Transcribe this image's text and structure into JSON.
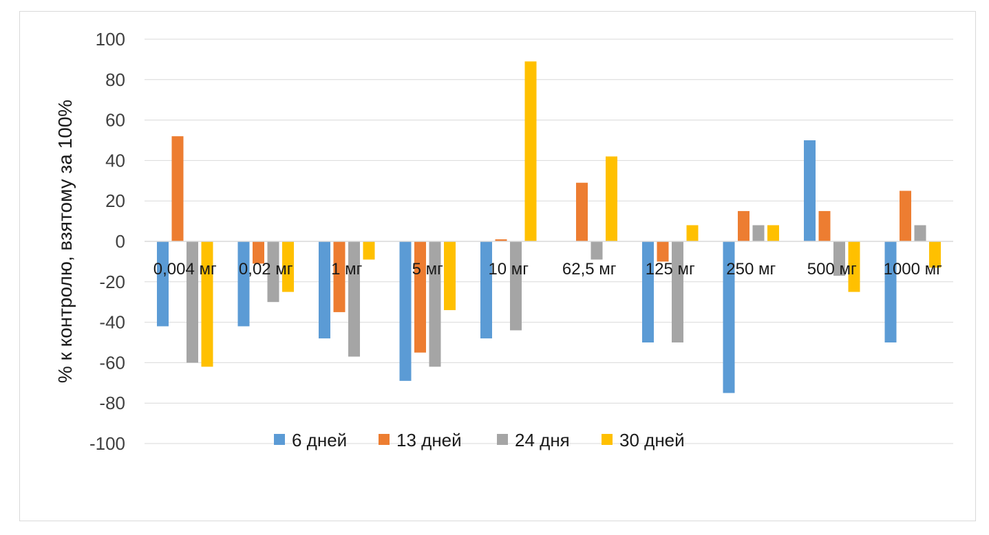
{
  "chart_data": {
    "type": "bar",
    "title": "",
    "xlabel": "",
    "ylabel": "% к  контролю, взятому за 100%",
    "ylim": [
      -100,
      100
    ],
    "ytick_step": 20,
    "grid": true,
    "legend_position": "bottom",
    "categories": [
      "0,004 мг",
      "0,02 мг",
      "1 мг",
      "5 мг",
      "10 мг",
      "62,5 мг",
      "125 мг",
      "250 мг",
      "500 мг",
      "1000 мг"
    ],
    "series": [
      {
        "name": "6 дней",
        "color": "#5B9BD5",
        "values": [
          -42,
          -42,
          -48,
          -69,
          -48,
          0,
          -50,
          -75,
          50,
          -50
        ]
      },
      {
        "name": "13 дней",
        "color": "#ED7D31",
        "values": [
          52,
          -11,
          -35,
          -55,
          1,
          29,
          -10,
          15,
          15,
          25
        ]
      },
      {
        "name": "24 дня",
        "color": "#A5A5A5",
        "values": [
          -60,
          -30,
          -57,
          -62,
          -44,
          -9,
          -50,
          8,
          -17,
          8
        ]
      },
      {
        "name": "30 дней",
        "color": "#FFC000",
        "values": [
          -62,
          -25,
          -9,
          -34,
          89,
          42,
          8,
          8,
          -25,
          -13
        ]
      }
    ]
  }
}
